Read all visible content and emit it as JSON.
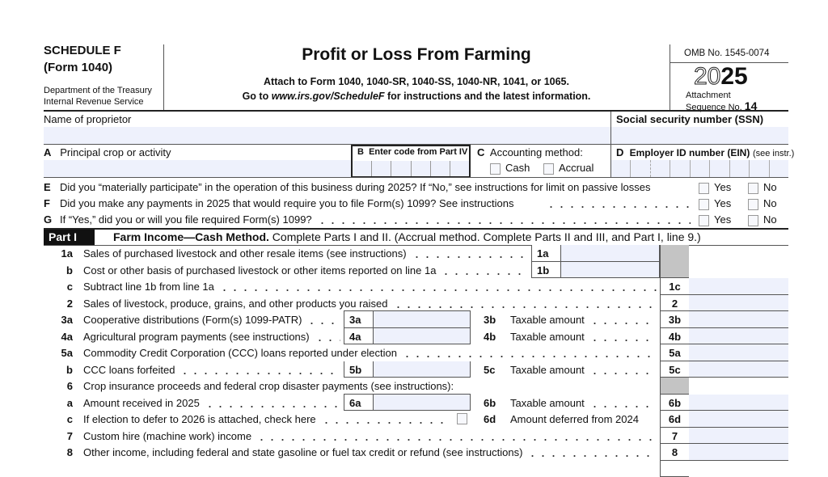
{
  "header": {
    "schedule": "SCHEDULE F",
    "form": "(Form 1040)",
    "dept1": "Department of the Treasury",
    "dept2": "Internal Revenue Service",
    "title": "Profit or Loss From Farming",
    "attach": "Attach to Form 1040, 1040-SR, 1040-SS, 1040-NR, 1041, or 1065.",
    "goto_pre": "Go to ",
    "goto_url": "www.irs.gov/ScheduleF",
    "goto_post": " for instructions and the latest information.",
    "omb": "OMB No. 1545-0074",
    "year_outline": "20",
    "year_bold": "25",
    "attachment": "Attachment",
    "seq_label": "Sequence No.",
    "seq_no": "14"
  },
  "fields": {
    "name_label": "Name of proprietor",
    "ssn_label": "Social security number (SSN)",
    "a_letter": "A",
    "a_label": "Principal crop or activity",
    "b_letter": "B",
    "b_label": "Enter code from Part IV",
    "c_letter": "C",
    "c_label": "Accounting method:",
    "cash": "Cash",
    "accrual": "Accrual",
    "d_letter": "D",
    "d_label": "Employer ID number (EIN)",
    "d_note": "(see instr.)"
  },
  "questions": [
    {
      "letter": "E",
      "text": "Did you “materially participate” in the operation of this business during 2025? If “No,” see instructions for limit on passive losses",
      "yes": "Yes",
      "no": "No"
    },
    {
      "letter": "F",
      "text": "Did you make any payments in 2025 that would require you to file Form(s) 1099? See instructions",
      "yes": "Yes",
      "no": "No"
    },
    {
      "letter": "G",
      "text": "If “Yes,” did you or will you file required Form(s) 1099?",
      "yes": "Yes",
      "no": "No"
    }
  ],
  "part1": {
    "tag": "Part I",
    "title": "Farm Income—Cash Method.",
    "desc": " Complete Parts I and II. (Accrual method. Complete Parts II and III, and Part I, line 9.)"
  },
  "lines": {
    "l1a": {
      "num": "1a",
      "text": "Sales of purchased livestock and other resale items (see instructions)",
      "box": "1a"
    },
    "l1b": {
      "num": "b",
      "text": "Cost or other basis of purchased livestock or other items reported on line 1a",
      "box": "1b"
    },
    "l1c": {
      "num": "c",
      "text": "Subtract line 1b from line 1a",
      "box": "1c"
    },
    "l2": {
      "num": "2",
      "text": "Sales of livestock, produce, grains, and other products you raised",
      "box": "2"
    },
    "l3": {
      "num": "3a",
      "text": "Cooperative distributions (Form(s) 1099-PATR)",
      "mid": "3a",
      "sub": "3b",
      "subtext": "Taxable amount",
      "box": "3b"
    },
    "l4": {
      "num": "4a",
      "text": "Agricultural program payments (see instructions)",
      "mid": "4a",
      "sub": "4b",
      "subtext": "Taxable amount",
      "box": "4b"
    },
    "l5a": {
      "num": "5a",
      "text": "Commodity Credit Corporation (CCC) loans reported under election",
      "box": "5a"
    },
    "l5b": {
      "num": "b",
      "text": "CCC loans forfeited",
      "mid": "5b",
      "sub": "5c",
      "subtext": "Taxable amount",
      "box": "5c"
    },
    "l6": {
      "num": "6",
      "text": "Crop insurance proceeds and federal crop disaster payments (see instructions):"
    },
    "l6a": {
      "num": "a",
      "text": "Amount received in 2025",
      "mid": "6a",
      "sub": "6b",
      "subtext": "Taxable amount",
      "box": "6b"
    },
    "l6c": {
      "num": "c",
      "text": "If election to defer to 2026 is attached, check here",
      "sub": "6d",
      "subtext": "Amount deferred from 2024",
      "box": "6d"
    },
    "l7": {
      "num": "7",
      "text": "Custom hire (machine work) income",
      "box": "7"
    },
    "l8": {
      "num": "8",
      "text": "Other income, including federal and state gasoline or fuel tax credit or refund (see instructions)",
      "box": "8"
    }
  }
}
